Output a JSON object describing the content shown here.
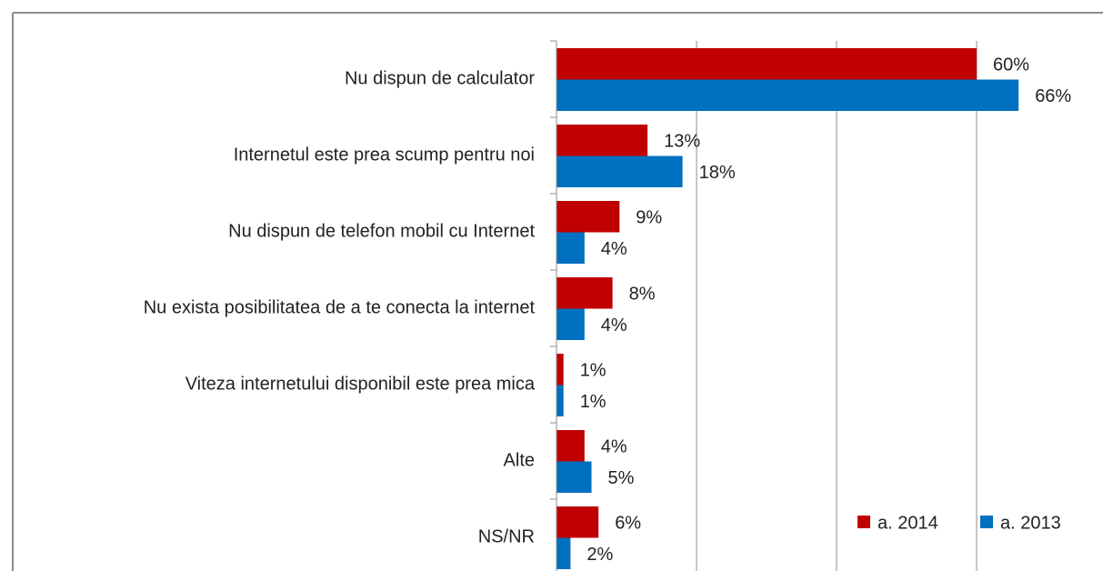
{
  "chart_data": {
    "type": "hbar",
    "categories": [
      "Nu dispun de calculator",
      "Internetul este prea scump pentru noi",
      "Nu dispun de telefon mobil cu Internet",
      "Nu exista posibilitatea de a te conecta la internet",
      "Viteza internetului disponibil este prea mica",
      "Alte",
      "NS/NR"
    ],
    "series": [
      {
        "name": "a. 2014",
        "color": "#c00000",
        "values": [
          60,
          13,
          9,
          8,
          1,
          4,
          6
        ],
        "value_labels": [
          "60%",
          "13%",
          "9%",
          "8%",
          "1%",
          "4%",
          "6%"
        ]
      },
      {
        "name": "a. 2013",
        "color": "#0070c0",
        "values": [
          66,
          18,
          4,
          4,
          1,
          5,
          2
        ],
        "value_labels": [
          "66%",
          "18%",
          "4%",
          "4%",
          "1%",
          "5%",
          "2%"
        ]
      }
    ],
    "xlim": [
      0,
      80
    ],
    "xticks": [
      0,
      20,
      40,
      60
    ],
    "grid": true,
    "legend": "bottom-right"
  }
}
